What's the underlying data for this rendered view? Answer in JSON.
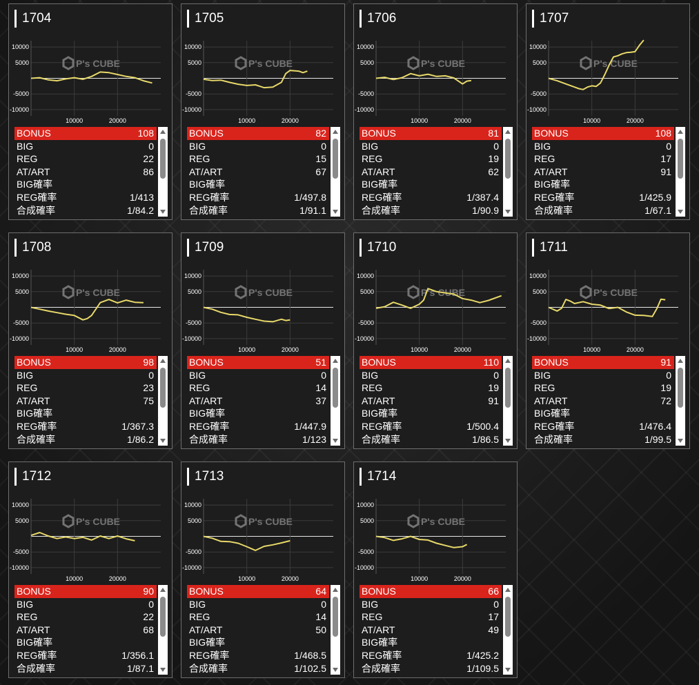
{
  "labels": {
    "bonus": "BONUS",
    "big": "BIG",
    "reg": "REG",
    "at_art": "AT/ART",
    "big_prob": "BIG確率",
    "reg_prob": "REG確率",
    "combined_prob": "合成確率"
  },
  "watermark": {
    "brand": "P's CUBE"
  },
  "colors": {
    "accent_red": "#d9241c",
    "line_yellow": "#e8d96a",
    "card_bg": "#1d1d1d"
  },
  "axis": {
    "y_ticks": [
      "10000",
      "5000",
      "-5000",
      "-10000"
    ],
    "x_ticks": [
      "10000",
      "20000"
    ]
  },
  "machines": [
    {
      "number": "1704",
      "bonus": "108",
      "big": "0",
      "reg": "22",
      "at_art": "86",
      "big_prob": "",
      "reg_prob": "1/413",
      "combined_prob": "1/84.2"
    },
    {
      "number": "1705",
      "bonus": "82",
      "big": "0",
      "reg": "15",
      "at_art": "67",
      "big_prob": "",
      "reg_prob": "1/497.8",
      "combined_prob": "1/91.1"
    },
    {
      "number": "1706",
      "bonus": "81",
      "big": "0",
      "reg": "19",
      "at_art": "62",
      "big_prob": "",
      "reg_prob": "1/387.4",
      "combined_prob": "1/90.9"
    },
    {
      "number": "1707",
      "bonus": "108",
      "big": "0",
      "reg": "17",
      "at_art": "91",
      "big_prob": "",
      "reg_prob": "1/425.9",
      "combined_prob": "1/67.1"
    },
    {
      "number": "1708",
      "bonus": "98",
      "big": "0",
      "reg": "23",
      "at_art": "75",
      "big_prob": "",
      "reg_prob": "1/367.3",
      "combined_prob": "1/86.2"
    },
    {
      "number": "1709",
      "bonus": "51",
      "big": "0",
      "reg": "14",
      "at_art": "37",
      "big_prob": "",
      "reg_prob": "1/447.9",
      "combined_prob": "1/123"
    },
    {
      "number": "1710",
      "bonus": "110",
      "big": "0",
      "reg": "19",
      "at_art": "91",
      "big_prob": "",
      "reg_prob": "1/500.4",
      "combined_prob": "1/86.5"
    },
    {
      "number": "1711",
      "bonus": "91",
      "big": "0",
      "reg": "19",
      "at_art": "72",
      "big_prob": "",
      "reg_prob": "1/476.4",
      "combined_prob": "1/99.5"
    },
    {
      "number": "1712",
      "bonus": "90",
      "big": "0",
      "reg": "22",
      "at_art": "68",
      "big_prob": "",
      "reg_prob": "1/356.1",
      "combined_prob": "1/87.1"
    },
    {
      "number": "1713",
      "bonus": "64",
      "big": "0",
      "reg": "14",
      "at_art": "50",
      "big_prob": "",
      "reg_prob": "1/468.5",
      "combined_prob": "1/102.5"
    },
    {
      "number": "1714",
      "bonus": "66",
      "big": "0",
      "reg": "17",
      "at_art": "49",
      "big_prob": "",
      "reg_prob": "1/425.2",
      "combined_prob": "1/109.5"
    }
  ],
  "chart_data": [
    {
      "type": "line",
      "title": "1704",
      "xlim": [
        0,
        30000
      ],
      "ylim": [
        -12000,
        12000
      ],
      "series": [
        {
          "x": [
            0,
            2000,
            4000,
            6000,
            8000,
            10000,
            12000,
            14000,
            16000,
            18000,
            20000,
            22000,
            24000,
            26000,
            28000
          ],
          "y": [
            0,
            200,
            -500,
            -800,
            -200,
            200,
            -300,
            600,
            2000,
            1800,
            1200,
            600,
            200,
            -800,
            -1500
          ]
        }
      ]
    },
    {
      "type": "line",
      "title": "1705",
      "xlim": [
        0,
        30000
      ],
      "ylim": [
        -12000,
        12000
      ],
      "series": [
        {
          "x": [
            0,
            2000,
            4000,
            6000,
            8000,
            10000,
            12000,
            14000,
            16000,
            18000,
            19000,
            20000,
            22000,
            23000,
            24000
          ],
          "y": [
            -300,
            -700,
            -600,
            -1300,
            -1900,
            -2300,
            -2100,
            -3000,
            -2800,
            -1300,
            1500,
            2500,
            2300,
            1800,
            2300
          ]
        }
      ]
    },
    {
      "type": "line",
      "title": "1706",
      "xlim": [
        0,
        30000
      ],
      "ylim": [
        -12000,
        12000
      ],
      "series": [
        {
          "x": [
            0,
            2000,
            4000,
            6000,
            8000,
            10000,
            12000,
            14000,
            16000,
            18000,
            20000,
            21000,
            22000
          ],
          "y": [
            0,
            300,
            -400,
            200,
            1500,
            800,
            1300,
            600,
            800,
            100,
            -1800,
            -900,
            -700
          ]
        }
      ]
    },
    {
      "type": "line",
      "title": "1707",
      "xlim": [
        0,
        30000
      ],
      "ylim": [
        -12000,
        12000
      ],
      "series": [
        {
          "x": [
            0,
            2000,
            4000,
            6000,
            7000,
            8000,
            9000,
            10000,
            11000,
            12000,
            13000,
            14000,
            15000,
            16000,
            17000,
            18000,
            19000,
            20000,
            21000,
            22000
          ],
          "y": [
            0,
            -800,
            -1800,
            -2800,
            -3300,
            -3600,
            -2800,
            -2400,
            -2600,
            -1500,
            1200,
            4200,
            6800,
            7200,
            7800,
            8200,
            8300,
            8500,
            10500,
            12200
          ]
        }
      ]
    },
    {
      "type": "line",
      "title": "1708",
      "xlim": [
        0,
        30000
      ],
      "ylim": [
        -12000,
        12000
      ],
      "series": [
        {
          "x": [
            0,
            2000,
            4000,
            6000,
            8000,
            10000,
            12000,
            13000,
            14000,
            16000,
            18000,
            20000,
            22000,
            24000,
            26000
          ],
          "y": [
            0,
            -600,
            -1200,
            -1700,
            -2200,
            -2600,
            -4000,
            -3600,
            -2600,
            1500,
            2500,
            1400,
            2300,
            1600,
            1500
          ]
        }
      ]
    },
    {
      "type": "line",
      "title": "1709",
      "xlim": [
        0,
        30000
      ],
      "ylim": [
        -12000,
        12000
      ],
      "series": [
        {
          "x": [
            0,
            2000,
            4000,
            6000,
            8000,
            10000,
            12000,
            14000,
            16000,
            18000,
            19000,
            20000
          ],
          "y": [
            0,
            -600,
            -1600,
            -2300,
            -2400,
            -3200,
            -3800,
            -4400,
            -4600,
            -3800,
            -4200,
            -4000
          ]
        }
      ]
    },
    {
      "type": "line",
      "title": "1710",
      "xlim": [
        0,
        30000
      ],
      "ylim": [
        -12000,
        12000
      ],
      "series": [
        {
          "x": [
            0,
            2000,
            4000,
            6000,
            8000,
            10000,
            11000,
            12000,
            14000,
            16000,
            18000,
            20000,
            22000,
            24000,
            26000,
            29000
          ],
          "y": [
            -300,
            200,
            1600,
            700,
            -300,
            1000,
            2300,
            6000,
            5000,
            4600,
            4200,
            2800,
            2300,
            1500,
            2200,
            3700
          ]
        }
      ]
    },
    {
      "type": "line",
      "title": "1711",
      "xlim": [
        0,
        30000
      ],
      "ylim": [
        -12000,
        12000
      ],
      "series": [
        {
          "x": [
            0,
            2000,
            3000,
            4000,
            5000,
            6000,
            8000,
            10000,
            12000,
            14000,
            16000,
            18000,
            20000,
            22000,
            24000,
            25000,
            26000,
            27000
          ],
          "y": [
            0,
            -1200,
            -300,
            2500,
            2000,
            1200,
            1800,
            1000,
            700,
            -400,
            0,
            -1500,
            -2500,
            -2600,
            -2900,
            -500,
            2600,
            2400
          ]
        }
      ]
    },
    {
      "type": "line",
      "title": "1712",
      "xlim": [
        0,
        30000
      ],
      "ylim": [
        -12000,
        12000
      ],
      "series": [
        {
          "x": [
            0,
            2000,
            4000,
            6000,
            8000,
            10000,
            12000,
            14000,
            16000,
            18000,
            20000,
            22000,
            24000
          ],
          "y": [
            300,
            1200,
            100,
            -700,
            -200,
            -700,
            -300,
            -1200,
            100,
            -700,
            100,
            -800,
            -1400
          ]
        }
      ]
    },
    {
      "type": "line",
      "title": "1713",
      "xlim": [
        0,
        30000
      ],
      "ylim": [
        -12000,
        12000
      ],
      "series": [
        {
          "x": [
            0,
            2000,
            4000,
            6000,
            8000,
            10000,
            12000,
            14000,
            16000,
            18000,
            20000
          ],
          "y": [
            0,
            -600,
            -1600,
            -1700,
            -2200,
            -3300,
            -4500,
            -3200,
            -2700,
            -2100,
            -1400
          ]
        }
      ]
    },
    {
      "type": "line",
      "title": "1714",
      "xlim": [
        0,
        30000
      ],
      "ylim": [
        -12000,
        12000
      ],
      "series": [
        {
          "x": [
            0,
            2000,
            4000,
            6000,
            8000,
            10000,
            12000,
            14000,
            16000,
            18000,
            20000,
            21000
          ],
          "y": [
            0,
            -400,
            -1300,
            -800,
            0,
            -1000,
            -1200,
            -2200,
            -2900,
            -3600,
            -3300,
            -2600
          ]
        }
      ]
    }
  ]
}
